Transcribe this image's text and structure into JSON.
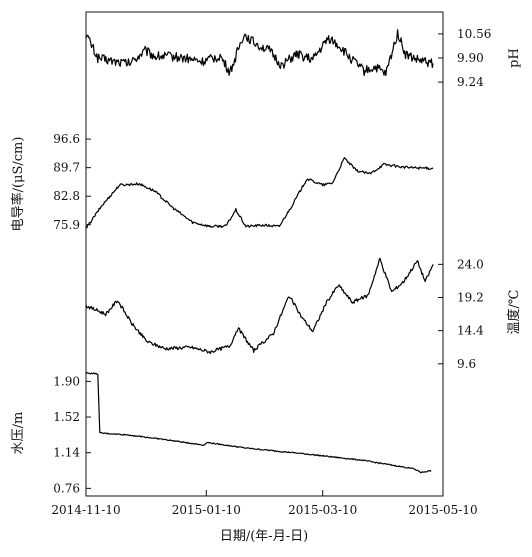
{
  "chart_data": {
    "type": "line",
    "stacked_panels": true,
    "x_axis": {
      "label": "日期/(年-月-日)",
      "range": [
        "2014-11-10",
        "2015-05-10"
      ],
      "ticks": [
        "2014-11-10",
        "2015-01-10",
        "2015-03-10",
        "2015-05-10"
      ]
    },
    "panels": [
      {
        "name": "ph",
        "ylabel": "pH",
        "y_side": "right",
        "ylim": [
          8.75,
          11.05
        ],
        "yticks": [
          {
            "value": 9.24,
            "label": "9.24"
          },
          {
            "value": 9.9,
            "label": "9.90"
          },
          {
            "value": 10.56,
            "label": "10.56"
          }
        ],
        "line_color": "#000000",
        "noise": 0.13,
        "x": [
          "2014-11-10",
          "2014-11-16",
          "2014-11-25",
          "2014-12-02",
          "2014-12-10",
          "2014-12-15",
          "2014-12-23",
          "2014-12-30",
          "2015-01-08",
          "2015-01-17",
          "2015-01-22",
          "2015-01-29",
          "2015-02-04",
          "2015-02-11",
          "2015-02-17",
          "2015-02-25",
          "2015-03-05",
          "2015-03-13",
          "2015-03-18",
          "2015-03-24",
          "2015-03-31",
          "2015-04-06",
          "2015-04-11",
          "2015-04-17",
          "2015-04-21",
          "2015-04-27",
          "2015-05-05"
        ],
        "y": [
          10.56,
          9.9,
          9.8,
          9.75,
          10.1,
          9.95,
          9.95,
          9.9,
          9.8,
          9.95,
          9.5,
          10.55,
          10.3,
          10.1,
          9.7,
          10.0,
          9.85,
          10.45,
          10.25,
          9.9,
          9.55,
          9.65,
          9.45,
          10.6,
          10.0,
          9.85,
          9.75
        ]
      },
      {
        "name": "conductivity",
        "ylabel": "电导率/(μS/cm)",
        "y_side": "left",
        "ylim": [
          71.5,
          100
        ],
        "yticks": [
          {
            "value": 75.9,
            "label": "75.9"
          },
          {
            "value": 82.8,
            "label": "82.8"
          },
          {
            "value": 89.7,
            "label": "89.7"
          },
          {
            "value": 96.6,
            "label": "96.6"
          }
        ],
        "line_color": "#000000",
        "noise": 0.3,
        "x": [
          "2014-11-10",
          "2014-11-18",
          "2014-11-27",
          "2014-12-07",
          "2014-12-15",
          "2014-12-24",
          "2015-01-03",
          "2015-01-12",
          "2015-01-20",
          "2015-01-25",
          "2015-01-30",
          "2015-02-08",
          "2015-02-16",
          "2015-02-23",
          "2015-03-02",
          "2015-03-10",
          "2015-03-15",
          "2015-03-21",
          "2015-03-27",
          "2015-04-03",
          "2015-04-10",
          "2015-04-20",
          "2015-05-05"
        ],
        "y": [
          75.0,
          80.5,
          85.5,
          85.8,
          84.0,
          80.0,
          76.5,
          75.5,
          75.6,
          79.5,
          75.5,
          75.8,
          75.5,
          81.0,
          87.0,
          85.5,
          86.0,
          92.0,
          89.0,
          88.2,
          90.5,
          89.8,
          89.5
        ]
      },
      {
        "name": "temperature",
        "ylabel": "温度/℃",
        "y_side": "right",
        "ylim": [
          8.7,
          25.5
        ],
        "yticks": [
          {
            "value": 9.6,
            "label": "9.6"
          },
          {
            "value": 14.4,
            "label": "14.4"
          },
          {
            "value": 19.2,
            "label": "19.2"
          },
          {
            "value": 24.0,
            "label": "24.0"
          }
        ],
        "line_color": "#000000",
        "noise": 0.25,
        "x": [
          "2014-11-10",
          "2014-11-20",
          "2014-11-26",
          "2014-12-03",
          "2014-12-11",
          "2014-12-20",
          "2015-01-02",
          "2015-01-12",
          "2015-01-22",
          "2015-01-26",
          "2015-02-03",
          "2015-02-13",
          "2015-02-21",
          "2015-02-27",
          "2015-03-05",
          "2015-03-12",
          "2015-03-18",
          "2015-03-25",
          "2015-04-02",
          "2015-04-08",
          "2015-04-14",
          "2015-04-20",
          "2015-04-27",
          "2015-05-01",
          "2015-05-05"
        ],
        "y": [
          18.0,
          16.8,
          18.8,
          15.5,
          12.8,
          11.8,
          12.0,
          11.3,
          12.2,
          14.8,
          11.5,
          14.0,
          19.5,
          16.5,
          14.3,
          18.5,
          21.0,
          18.5,
          19.5,
          24.8,
          20.0,
          21.5,
          24.5,
          21.5,
          24.0
        ]
      },
      {
        "name": "water_pressure",
        "ylabel": "水压/m",
        "y_side": "left",
        "ylim": [
          0.7,
          2.0
        ],
        "yticks": [
          {
            "value": 0.76,
            "label": "0.76"
          },
          {
            "value": 1.14,
            "label": "1.14"
          },
          {
            "value": 1.52,
            "label": "1.52"
          },
          {
            "value": 1.9,
            "label": "1.90"
          }
        ],
        "line_color": "#000000",
        "noise": 0.006,
        "x": [
          "2014-11-10",
          "2014-11-16",
          "2014-11-17",
          "2014-12-01",
          "2014-12-20",
          "2015-01-09",
          "2015-01-10",
          "2015-01-30",
          "2015-02-28",
          "2015-03-30",
          "2015-04-25",
          "2015-04-29",
          "2015-05-04"
        ],
        "y": [
          1.99,
          1.98,
          1.35,
          1.33,
          1.28,
          1.22,
          1.25,
          1.19,
          1.13,
          1.06,
          0.97,
          0.93,
          0.95
        ]
      }
    ]
  }
}
